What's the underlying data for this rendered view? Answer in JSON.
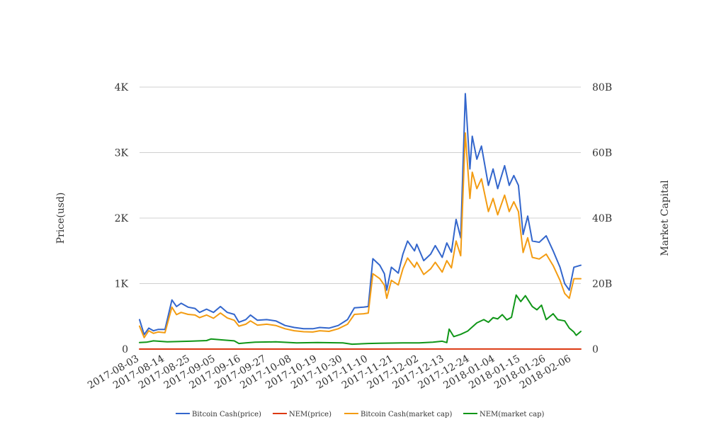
{
  "chart_data": {
    "type": "line",
    "title": "",
    "ylabel": "Price(usd)",
    "y2label": "Market Capital",
    "ylim": [
      0,
      4000
    ],
    "y2lim": [
      0,
      80000000000
    ],
    "y_ticks": [
      {
        "value": 0,
        "label": "0"
      },
      {
        "value": 1000,
        "label": "1K"
      },
      {
        "value": 2000,
        "label": "2K"
      },
      {
        "value": 3000,
        "label": "3K"
      },
      {
        "value": 4000,
        "label": "4K"
      }
    ],
    "y2_ticks": [
      {
        "value": 0,
        "label": "0"
      },
      {
        "value": 20000000000,
        "label": "20B"
      },
      {
        "value": 40000000000,
        "label": "40B"
      },
      {
        "value": 60000000000,
        "label": "60B"
      },
      {
        "value": 80000000000,
        "label": "80B"
      }
    ],
    "x_tick_labels": [
      "2017-08-03",
      "2017-08-14",
      "2017-08-25",
      "2017-09-05",
      "2017-09-16",
      "2017-09-27",
      "2017-10-08",
      "2017-10-19",
      "2017-10-30",
      "2017-11-10",
      "2017-11-21",
      "2017-12-02",
      "2017-12-13",
      "2017-12-24",
      "2018-01-04",
      "2018-01-15",
      "2018-01-26",
      "2018-02-06"
    ],
    "x_start": "2017-08-03",
    "x_end": "2018-02-10",
    "grid": "horizontal",
    "legend_position": "bottom",
    "series": [
      {
        "name": "Bitcoin Cash(price)",
        "color": "#3366cc",
        "axis": "left",
        "points": [
          [
            "2017-08-03",
            450
          ],
          [
            "2017-08-05",
            220
          ],
          [
            "2017-08-07",
            320
          ],
          [
            "2017-08-09",
            280
          ],
          [
            "2017-08-11",
            300
          ],
          [
            "2017-08-14",
            300
          ],
          [
            "2017-08-17",
            750
          ],
          [
            "2017-08-19",
            650
          ],
          [
            "2017-08-21",
            700
          ],
          [
            "2017-08-24",
            640
          ],
          [
            "2017-08-27",
            620
          ],
          [
            "2017-08-29",
            560
          ],
          [
            "2017-09-01",
            610
          ],
          [
            "2017-09-04",
            560
          ],
          [
            "2017-09-07",
            650
          ],
          [
            "2017-09-10",
            560
          ],
          [
            "2017-09-13",
            530
          ],
          [
            "2017-09-15",
            410
          ],
          [
            "2017-09-18",
            450
          ],
          [
            "2017-09-20",
            520
          ],
          [
            "2017-09-23",
            440
          ],
          [
            "2017-09-27",
            450
          ],
          [
            "2017-10-01",
            430
          ],
          [
            "2017-10-05",
            360
          ],
          [
            "2017-10-09",
            330
          ],
          [
            "2017-10-13",
            310
          ],
          [
            "2017-10-17",
            310
          ],
          [
            "2017-10-20",
            330
          ],
          [
            "2017-10-24",
            320
          ],
          [
            "2017-10-28",
            360
          ],
          [
            "2017-11-01",
            450
          ],
          [
            "2017-11-04",
            630
          ],
          [
            "2017-11-08",
            640
          ],
          [
            "2017-11-10",
            650
          ],
          [
            "2017-11-12",
            1380
          ],
          [
            "2017-11-15",
            1280
          ],
          [
            "2017-11-17",
            1150
          ],
          [
            "2017-11-18",
            900
          ],
          [
            "2017-11-20",
            1250
          ],
          [
            "2017-11-23",
            1160
          ],
          [
            "2017-11-25",
            1450
          ],
          [
            "2017-11-27",
            1650
          ],
          [
            "2017-11-30",
            1500
          ],
          [
            "2017-12-01",
            1600
          ],
          [
            "2017-12-04",
            1350
          ],
          [
            "2017-12-07",
            1450
          ],
          [
            "2017-12-09",
            1580
          ],
          [
            "2017-12-12",
            1400
          ],
          [
            "2017-12-14",
            1620
          ],
          [
            "2017-12-16",
            1480
          ],
          [
            "2017-12-18",
            1980
          ],
          [
            "2017-12-20",
            1700
          ],
          [
            "2017-12-22",
            3900
          ],
          [
            "2017-12-24",
            2750
          ],
          [
            "2017-12-25",
            3250
          ],
          [
            "2017-12-27",
            2900
          ],
          [
            "2017-12-29",
            3100
          ],
          [
            "2018-01-01",
            2500
          ],
          [
            "2018-01-03",
            2750
          ],
          [
            "2018-01-05",
            2450
          ],
          [
            "2018-01-08",
            2800
          ],
          [
            "2018-01-10",
            2500
          ],
          [
            "2018-01-12",
            2650
          ],
          [
            "2018-01-14",
            2500
          ],
          [
            "2018-01-16",
            1750
          ],
          [
            "2018-01-18",
            2030
          ],
          [
            "2018-01-20",
            1650
          ],
          [
            "2018-01-23",
            1630
          ],
          [
            "2018-01-26",
            1730
          ],
          [
            "2018-01-29",
            1500
          ],
          [
            "2018-02-01",
            1250
          ],
          [
            "2018-02-03",
            1000
          ],
          [
            "2018-02-05",
            900
          ],
          [
            "2018-02-07",
            1250
          ],
          [
            "2018-02-10",
            1280
          ]
        ]
      },
      {
        "name": "NEM(price)",
        "color": "#dc3912",
        "axis": "left",
        "points": [
          [
            "2017-08-03",
            0.2
          ],
          [
            "2017-11-01",
            0.2
          ],
          [
            "2018-01-05",
            1.5
          ],
          [
            "2018-02-10",
            0.5
          ]
        ]
      },
      {
        "name": "Bitcoin Cash(market cap)",
        "color": "#f39c12",
        "axis": "right",
        "points": [
          [
            "2017-08-03",
            7000000000
          ],
          [
            "2017-08-05",
            3500000000
          ],
          [
            "2017-08-07",
            5600000000
          ],
          [
            "2017-08-09",
            4800000000
          ],
          [
            "2017-08-11",
            5200000000
          ],
          [
            "2017-08-14",
            5000000000
          ],
          [
            "2017-08-17",
            12800000000
          ],
          [
            "2017-08-19",
            10500000000
          ],
          [
            "2017-08-21",
            11200000000
          ],
          [
            "2017-08-24",
            10600000000
          ],
          [
            "2017-08-27",
            10400000000
          ],
          [
            "2017-08-29",
            9600000000
          ],
          [
            "2017-09-01",
            10400000000
          ],
          [
            "2017-09-04",
            9400000000
          ],
          [
            "2017-09-07",
            11000000000
          ],
          [
            "2017-09-10",
            9500000000
          ],
          [
            "2017-09-13",
            8800000000
          ],
          [
            "2017-09-15",
            7000000000
          ],
          [
            "2017-09-18",
            7600000000
          ],
          [
            "2017-09-20",
            8600000000
          ],
          [
            "2017-09-23",
            7300000000
          ],
          [
            "2017-09-27",
            7600000000
          ],
          [
            "2017-10-01",
            7200000000
          ],
          [
            "2017-10-05",
            6200000000
          ],
          [
            "2017-10-09",
            5600000000
          ],
          [
            "2017-10-13",
            5300000000
          ],
          [
            "2017-10-17",
            5200000000
          ],
          [
            "2017-10-20",
            5600000000
          ],
          [
            "2017-10-24",
            5400000000
          ],
          [
            "2017-10-28",
            6200000000
          ],
          [
            "2017-11-01",
            7600000000
          ],
          [
            "2017-11-04",
            10600000000
          ],
          [
            "2017-11-08",
            10800000000
          ],
          [
            "2017-11-10",
            11000000000
          ],
          [
            "2017-11-12",
            23000000000
          ],
          [
            "2017-11-15",
            21500000000
          ],
          [
            "2017-11-17",
            19500000000
          ],
          [
            "2017-11-18",
            15500000000
          ],
          [
            "2017-11-20",
            21000000000
          ],
          [
            "2017-11-23",
            19600000000
          ],
          [
            "2017-11-25",
            24500000000
          ],
          [
            "2017-11-27",
            27800000000
          ],
          [
            "2017-11-30",
            25000000000
          ],
          [
            "2017-12-01",
            26500000000
          ],
          [
            "2017-12-04",
            22800000000
          ],
          [
            "2017-12-07",
            24500000000
          ],
          [
            "2017-12-09",
            26500000000
          ],
          [
            "2017-12-12",
            23500000000
          ],
          [
            "2017-12-14",
            27000000000
          ],
          [
            "2017-12-16",
            24800000000
          ],
          [
            "2017-12-18",
            33000000000
          ],
          [
            "2017-12-20",
            28500000000
          ],
          [
            "2017-12-22",
            66000000000
          ],
          [
            "2017-12-24",
            46000000000
          ],
          [
            "2017-12-25",
            54000000000
          ],
          [
            "2017-12-27",
            49000000000
          ],
          [
            "2017-12-29",
            52000000000
          ],
          [
            "2018-01-01",
            42000000000
          ],
          [
            "2018-01-03",
            46000000000
          ],
          [
            "2018-01-05",
            41000000000
          ],
          [
            "2018-01-08",
            47000000000
          ],
          [
            "2018-01-10",
            42000000000
          ],
          [
            "2018-01-12",
            45000000000
          ],
          [
            "2018-01-14",
            42000000000
          ],
          [
            "2018-01-16",
            29500000000
          ],
          [
            "2018-01-18",
            34000000000
          ],
          [
            "2018-01-20",
            28000000000
          ],
          [
            "2018-01-23",
            27500000000
          ],
          [
            "2018-01-26",
            29000000000
          ],
          [
            "2018-01-29",
            25500000000
          ],
          [
            "2018-02-01",
            21000000000
          ],
          [
            "2018-02-03",
            17000000000
          ],
          [
            "2018-02-05",
            15500000000
          ],
          [
            "2018-02-07",
            21500000000
          ],
          [
            "2018-02-10",
            21500000000
          ]
        ]
      },
      {
        "name": "NEM(market cap)",
        "color": "#109618",
        "axis": "right",
        "points": [
          [
            "2017-08-03",
            2000000000
          ],
          [
            "2017-08-06",
            2100000000
          ],
          [
            "2017-08-09",
            2500000000
          ],
          [
            "2017-08-15",
            2200000000
          ],
          [
            "2017-08-25",
            2400000000
          ],
          [
            "2017-09-01",
            2600000000
          ],
          [
            "2017-09-03",
            3100000000
          ],
          [
            "2017-09-08",
            2800000000
          ],
          [
            "2017-09-13",
            2500000000
          ],
          [
            "2017-09-15",
            1700000000
          ],
          [
            "2017-09-18",
            1900000000
          ],
          [
            "2017-09-22",
            2100000000
          ],
          [
            "2017-10-01",
            2200000000
          ],
          [
            "2017-10-10",
            1900000000
          ],
          [
            "2017-10-19",
            2000000000
          ],
          [
            "2017-10-30",
            1900000000
          ],
          [
            "2017-11-03",
            1500000000
          ],
          [
            "2017-11-10",
            1700000000
          ],
          [
            "2017-11-15",
            1800000000
          ],
          [
            "2017-11-25",
            1900000000
          ],
          [
            "2017-12-02",
            1900000000
          ],
          [
            "2017-12-08",
            2100000000
          ],
          [
            "2017-12-12",
            2400000000
          ],
          [
            "2017-12-14",
            2000000000
          ],
          [
            "2017-12-15",
            6100000000
          ],
          [
            "2017-12-17",
            3800000000
          ],
          [
            "2017-12-20",
            4500000000
          ],
          [
            "2017-12-23",
            5500000000
          ],
          [
            "2017-12-27",
            8000000000
          ],
          [
            "2017-12-30",
            9000000000
          ],
          [
            "2018-01-01",
            8200000000
          ],
          [
            "2018-01-03",
            9600000000
          ],
          [
            "2018-01-05",
            9200000000
          ],
          [
            "2018-01-07",
            10500000000
          ],
          [
            "2018-01-09",
            8900000000
          ],
          [
            "2018-01-11",
            9700000000
          ],
          [
            "2018-01-13",
            16500000000
          ],
          [
            "2018-01-15",
            14500000000
          ],
          [
            "2018-01-17",
            16300000000
          ],
          [
            "2018-01-20",
            13000000000
          ],
          [
            "2018-01-22",
            12000000000
          ],
          [
            "2018-01-24",
            13400000000
          ],
          [
            "2018-01-26",
            9000000000
          ],
          [
            "2018-01-29",
            10800000000
          ],
          [
            "2018-01-31",
            9000000000
          ],
          [
            "2018-02-03",
            8600000000
          ],
          [
            "2018-02-05",
            6400000000
          ],
          [
            "2018-02-07",
            5200000000
          ],
          [
            "2018-02-08",
            4200000000
          ],
          [
            "2018-02-10",
            5400000000
          ]
        ]
      }
    ]
  }
}
